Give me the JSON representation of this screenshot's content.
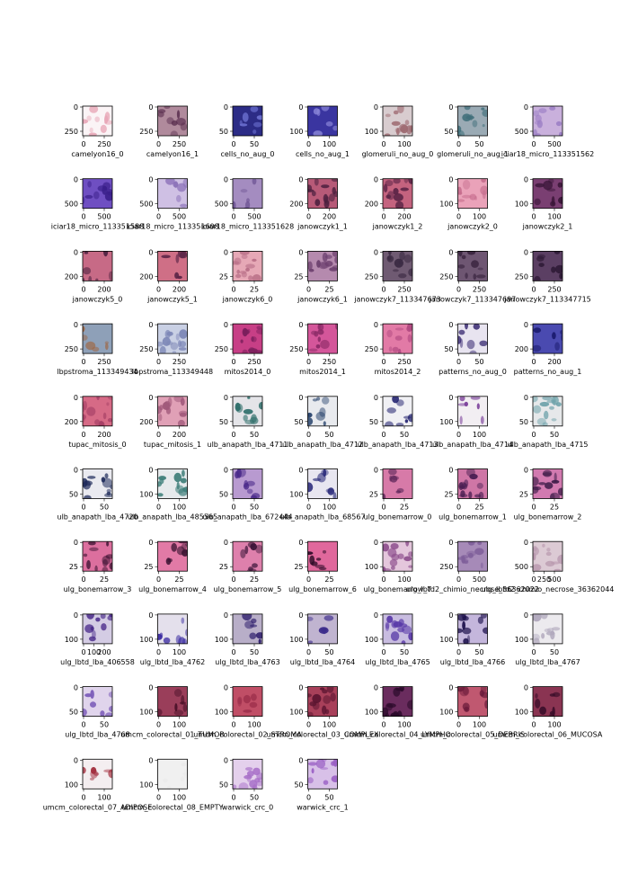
{
  "chart_data": {
    "type": "image_grid",
    "columns": 7,
    "panels": [
      {
        "name": "camelyon16_0",
        "xticks": [
          "0",
          "250"
        ],
        "yticks": [
          "0",
          "250"
        ],
        "bg": "#fbf4f6",
        "cell": "#e8a7b8"
      },
      {
        "name": "camelyon16_1",
        "xticks": [
          "0",
          "250"
        ],
        "yticks": [
          "0",
          "250"
        ],
        "bg": "#b08a9c",
        "cell": "#5a2e4f"
      },
      {
        "name": "cells_no_aug_0",
        "xticks": [
          "0",
          "50"
        ],
        "yticks": [
          "0",
          "50"
        ],
        "bg": "#2c2c86",
        "cell": "#6a6fcf"
      },
      {
        "name": "cells_no_aug_1",
        "xticks": [
          "0",
          "100"
        ],
        "yticks": [
          "0",
          "100"
        ],
        "bg": "#3a35a0",
        "cell": "#8a86d8"
      },
      {
        "name": "glomeruli_no_aug_0",
        "xticks": [
          "0",
          "100"
        ],
        "yticks": [
          "0",
          "100"
        ],
        "bg": "#d8cccf",
        "cell": "#9e6b72"
      },
      {
        "name": "glomeruli_no_aug_1",
        "xticks": [
          "0",
          "50"
        ],
        "yticks": [
          "0",
          "50"
        ],
        "bg": "#9aaab4",
        "cell": "#3f6e7a"
      },
      {
        "name": "iciar18_micro_113351562",
        "xticks": [
          "0",
          "500"
        ],
        "yticks": [
          "0",
          "500"
        ],
        "bg": "#c9b0dc",
        "cell": "#9a7cc4"
      },
      {
        "name": "iciar18_micro_113351588",
        "xticks": [
          "0",
          "500"
        ],
        "yticks": [
          "0",
          "500"
        ],
        "bg": "#6f4fc2",
        "cell": "#3a1f8a"
      },
      {
        "name": "iciar18_micro_113351608",
        "xticks": [
          "0",
          "500"
        ],
        "yticks": [
          "0",
          "500"
        ],
        "bg": "#cfc0e4",
        "cell": "#8a70b8"
      },
      {
        "name": "iciar18_micro_113351628",
        "xticks": [
          "0",
          "500"
        ],
        "yticks": [
          "0",
          "500"
        ],
        "bg": "#a48cc0",
        "cell": "#6e5494"
      },
      {
        "name": "janowczyk1_1",
        "xticks": [
          "0",
          "200"
        ],
        "yticks": [
          "0",
          "200"
        ],
        "bg": "#b75a78",
        "cell": "#4a1f3e"
      },
      {
        "name": "janowczyk1_2",
        "xticks": [
          "0",
          "200"
        ],
        "yticks": [
          "0",
          "200"
        ],
        "bg": "#c4637f",
        "cell": "#5a2446"
      },
      {
        "name": "janowczyk2_0",
        "xticks": [
          "0",
          "100"
        ],
        "yticks": [
          "0",
          "100"
        ],
        "bg": "#eaa2b9",
        "cell": "#c66d8d"
      },
      {
        "name": "janowczyk2_1",
        "xticks": [
          "0",
          "100"
        ],
        "yticks": [
          "0",
          "100"
        ],
        "bg": "#7a3f72",
        "cell": "#3a1638"
      },
      {
        "name": "janowczyk5_0",
        "xticks": [
          "0",
          "200"
        ],
        "yticks": [
          "0",
          "200"
        ],
        "bg": "#c76a86",
        "cell": "#4a1f3e"
      },
      {
        "name": "janowczyk5_1",
        "xticks": [
          "0",
          "200"
        ],
        "yticks": [
          "0",
          "200"
        ],
        "bg": "#cf6f86",
        "cell": "#5a2446"
      },
      {
        "name": "janowczyk6_0",
        "xticks": [
          "0",
          "25"
        ],
        "yticks": [
          "0",
          "25"
        ],
        "bg": "#e6a8b6",
        "cell": "#b66c85"
      },
      {
        "name": "janowczyk6_1",
        "xticks": [
          "0",
          "25"
        ],
        "yticks": [
          "0",
          "25"
        ],
        "bg": "#b58aae",
        "cell": "#6c3f6e"
      },
      {
        "name": "janowczyk7_113347673",
        "xticks": [
          "0",
          "250"
        ],
        "yticks": [
          "0",
          "250"
        ],
        "bg": "#6f5a72",
        "cell": "#3b2a43"
      },
      {
        "name": "janowczyk7_113347697",
        "xticks": [
          "0",
          "250"
        ],
        "yticks": [
          "0",
          "250"
        ],
        "bg": "#6e5672",
        "cell": "#3a2540"
      },
      {
        "name": "janowczyk7_113347715",
        "xticks": [
          "0",
          "250"
        ],
        "yticks": [
          "0",
          "250"
        ],
        "bg": "#5b3f63",
        "cell": "#2e1a36"
      },
      {
        "name": "lbpstroma_113349434",
        "xticks": [
          "0",
          "250"
        ],
        "yticks": [
          "0",
          "250"
        ],
        "bg": "#8ea0b8",
        "cell": "#a0623a"
      },
      {
        "name": "lbpstroma_113349448",
        "xticks": [
          "0",
          "250"
        ],
        "yticks": [
          "0",
          "250"
        ],
        "bg": "#c9d0e4",
        "cell": "#7c86b6"
      },
      {
        "name": "mitos2014_0",
        "xticks": [
          "0",
          "250"
        ],
        "yticks": [
          "0",
          "250"
        ],
        "bg": "#c73f86",
        "cell": "#7a1f5c"
      },
      {
        "name": "mitos2014_1",
        "xticks": [
          "0",
          "250"
        ],
        "yticks": [
          "0",
          "250"
        ],
        "bg": "#d4569a",
        "cell": "#8a2a66"
      },
      {
        "name": "mitos2014_2",
        "xticks": [
          "0",
          "250"
        ],
        "yticks": [
          "0",
          "250"
        ],
        "bg": "#e27aa6",
        "cell": "#b24a82"
      },
      {
        "name": "patterns_no_aug_0",
        "xticks": [
          "0",
          "50"
        ],
        "yticks": [
          "0",
          "50"
        ],
        "bg": "#e8e4f0",
        "cell": "#2e1f6a"
      },
      {
        "name": "patterns_no_aug_1",
        "xticks": [
          "0",
          "200"
        ],
        "yticks": [
          "0",
          "200"
        ],
        "bg": "#4a4ab0",
        "cell": "#1c1c6e"
      },
      {
        "name": "tupac_mitosis_0",
        "xticks": [
          "0",
          "200"
        ],
        "yticks": [
          "0",
          "200"
        ],
        "bg": "#d66a86",
        "cell": "#a64066"
      },
      {
        "name": "tupac_mitosis_1",
        "xticks": [
          "0",
          "200"
        ],
        "yticks": [
          "0",
          "200"
        ],
        "bg": "#e0a0b6",
        "cell": "#a0587a"
      },
      {
        "name": "ulb_anapath_lba_4711",
        "xticks": [
          "0",
          "50"
        ],
        "yticks": [
          "0",
          "50"
        ],
        "bg": "#e4e4e8",
        "cell": "#2f6f6a"
      },
      {
        "name": "ulb_anapath_lba_4712",
        "xticks": [
          "0",
          "50"
        ],
        "yticks": [
          "0",
          "50"
        ],
        "bg": "#e8eaee",
        "cell": "#24406a"
      },
      {
        "name": "ulb_anapath_lba_4713",
        "xticks": [
          "0",
          "50"
        ],
        "yticks": [
          "0",
          "50"
        ],
        "bg": "#f0f0f4",
        "cell": "#1a1a6a"
      },
      {
        "name": "ulb_anapath_lba_4714",
        "xticks": [
          "0",
          "100"
        ],
        "yticks": [
          "0",
          "100"
        ],
        "bg": "#f2eef2",
        "cell": "#7a3f9a"
      },
      {
        "name": "ulb_anapath_lba_4715",
        "xticks": [
          "0",
          "50"
        ],
        "yticks": [
          "0",
          "50"
        ],
        "bg": "#e6e8ea",
        "cell": "#6aa0a8"
      },
      {
        "name": "ulb_anapath_lba_4720",
        "xticks": [
          "0",
          "50"
        ],
        "yticks": [
          "0",
          "50"
        ],
        "bg": "#eaeaf0",
        "cell": "#1e2a5a"
      },
      {
        "name": "ulb_anapath_lba_485565",
        "xticks": [
          "0",
          "100"
        ],
        "yticks": [
          "0",
          "100"
        ],
        "bg": "#e6eaec",
        "cell": "#3f7f7a"
      },
      {
        "name": "ulb_anapath_lba_672444",
        "xticks": [
          "0",
          "50"
        ],
        "yticks": [
          "0",
          "50"
        ],
        "bg": "#b89ad0",
        "cell": "#4a2a8a"
      },
      {
        "name": "ulb_anapath_lba_68567",
        "xticks": [
          "0",
          "100"
        ],
        "yticks": [
          "0",
          "100"
        ],
        "bg": "#e8e6f0",
        "cell": "#2a2a7a"
      },
      {
        "name": "ulg_bonemarrow_0",
        "xticks": [
          "0",
          "25"
        ],
        "yticks": [
          "0",
          "25"
        ],
        "bg": "#d77aa8",
        "cell": "#5a2458"
      },
      {
        "name": "ulg_bonemarrow_1",
        "xticks": [
          "0",
          "25"
        ],
        "yticks": [
          "0",
          "25"
        ],
        "bg": "#cf76a6",
        "cell": "#4a1f52"
      },
      {
        "name": "ulg_bonemarrow_2",
        "xticks": [
          "0",
          "25"
        ],
        "yticks": [
          "0",
          "25"
        ],
        "bg": "#d27ab0",
        "cell": "#3a1a46"
      },
      {
        "name": "ulg_bonemarrow_3",
        "xticks": [
          "0",
          "25"
        ],
        "yticks": [
          "0",
          "25"
        ],
        "bg": "#dc6f9e",
        "cell": "#3c1232"
      },
      {
        "name": "ulg_bonemarrow_4",
        "xticks": [
          "0",
          "25"
        ],
        "yticks": [
          "0",
          "25"
        ],
        "bg": "#e27aa6",
        "cell": "#3e1634"
      },
      {
        "name": "ulg_bonemarrow_5",
        "xticks": [
          "0",
          "25"
        ],
        "yticks": [
          "0",
          "25"
        ],
        "bg": "#de80ac",
        "cell": "#3a1438"
      },
      {
        "name": "ulg_bonemarrow_6",
        "xticks": [
          "0",
          "25"
        ],
        "yticks": [
          "0",
          "25"
        ],
        "bg": "#e0689c",
        "cell": "#2e0c28"
      },
      {
        "name": "ulg_bonemarrow_7",
        "xticks": [
          "0",
          "100"
        ],
        "yticks": [
          "0",
          "100"
        ],
        "bg": "#e4c6dc",
        "cell": "#8a4a8a"
      },
      {
        "name": "ulg_lbtd2_chimio_necrose_36362022",
        "xticks": [
          "0",
          "500"
        ],
        "yticks": [
          "0",
          "250"
        ],
        "bg": "#a68ab8",
        "cell": "#7e5e9a"
      },
      {
        "name": "ulg_lbtd2_chimio_necrose_36362044",
        "xticks": [
          "0",
          "250",
          "500"
        ],
        "yticks": [
          "0",
          "500"
        ],
        "bg": "#dccad4",
        "cell": "#b898ae"
      },
      {
        "name": "ulg_lbtd_lba_406558",
        "xticks": [
          "0",
          "100",
          "200"
        ],
        "yticks": [
          "0",
          "100"
        ],
        "bg": "#d4cce4",
        "cell": "#4a2a8a"
      },
      {
        "name": "ulg_lbtd_lba_4762",
        "xticks": [
          "0",
          "100"
        ],
        "yticks": [
          "0",
          "100"
        ],
        "bg": "#e4e0ec",
        "cell": "#3a2aa0"
      },
      {
        "name": "ulg_lbtd_lba_4763",
        "xticks": [
          "0",
          "50"
        ],
        "yticks": [
          "0",
          "100"
        ],
        "bg": "#b8aec8",
        "cell": "#2a1a6a"
      },
      {
        "name": "ulg_lbtd_lba_4764",
        "xticks": [
          "0",
          "50"
        ],
        "yticks": [
          "0",
          "100"
        ],
        "bg": "#c0b4d0",
        "cell": "#3a2a8a"
      },
      {
        "name": "ulg_lbtd_lba_4765",
        "xticks": [
          "0",
          "50"
        ],
        "yticks": [
          "0",
          "100"
        ],
        "bg": "#c8bce0",
        "cell": "#5a3aa8"
      },
      {
        "name": "ulg_lbtd_lba_4766",
        "xticks": [
          "0",
          "50"
        ],
        "yticks": [
          "0",
          "100"
        ],
        "bg": "#c4b6dc",
        "cell": "#1a0e4a"
      },
      {
        "name": "ulg_lbtd_lba_4767",
        "xticks": [
          "0",
          "50"
        ],
        "yticks": [
          "0",
          "100"
        ],
        "bg": "#eceaee",
        "cell": "#b0a8bc"
      },
      {
        "name": "ulg_lbtd_lba_4768",
        "xticks": [
          "0",
          "50"
        ],
        "yticks": [
          "0",
          "50"
        ],
        "bg": "#e0d4ec",
        "cell": "#7a5ab8"
      },
      {
        "name": "umcm_colorectal_01_TUMOR",
        "xticks": [
          "0",
          "100"
        ],
        "yticks": [
          "0",
          "100"
        ],
        "bg": "#9a3e5a",
        "cell": "#4a1028"
      },
      {
        "name": "umcm_colorectal_02_STROMA",
        "xticks": [
          "0",
          "100"
        ],
        "yticks": [
          "0",
          "100"
        ],
        "bg": "#c04e66",
        "cell": "#9a2e4a"
      },
      {
        "name": "umcm_colorectal_03_COMPLEX",
        "xticks": [
          "0",
          "100"
        ],
        "yticks": [
          "0",
          "100"
        ],
        "bg": "#a8405a",
        "cell": "#5a1430"
      },
      {
        "name": "umcm_colorectal_04_LYMPHO",
        "xticks": [
          "0",
          "100"
        ],
        "yticks": [
          "0",
          "100"
        ],
        "bg": "#6a2c5e",
        "cell": "#2a0a2a"
      },
      {
        "name": "umcm_colorectal_05_DEBRIS",
        "xticks": [
          "0",
          "100"
        ],
        "yticks": [
          "0",
          "100"
        ],
        "bg": "#c05870",
        "cell": "#6a1a3a"
      },
      {
        "name": "umcm_colorectal_06_MUCOSA",
        "xticks": [
          "0",
          "100"
        ],
        "yticks": [
          "0",
          "100"
        ],
        "bg": "#8a3452",
        "cell": "#3a0e2a"
      },
      {
        "name": "umcm_colorectal_07_ADIPOSE",
        "xticks": [
          "0",
          "100"
        ],
        "yticks": [
          "0",
          "100"
        ],
        "bg": "#f4eef0",
        "cell": "#a02a3a"
      },
      {
        "name": "umcm_colorectal_08_EMPTY",
        "xticks": [
          "0",
          "100"
        ],
        "yticks": [
          "0",
          "100"
        ],
        "bg": "#f0f0f0",
        "cell": "#eaeaea"
      },
      {
        "name": "warwick_crc_0",
        "xticks": [
          "0",
          "50"
        ],
        "yticks": [
          "0",
          "50"
        ],
        "bg": "#e4d0ec",
        "cell": "#a870c8"
      },
      {
        "name": "warwick_crc_1",
        "xticks": [
          "0",
          "50"
        ],
        "yticks": [
          "0",
          "50"
        ],
        "bg": "#d8c0e8",
        "cell": "#9a5ec4"
      }
    ]
  }
}
